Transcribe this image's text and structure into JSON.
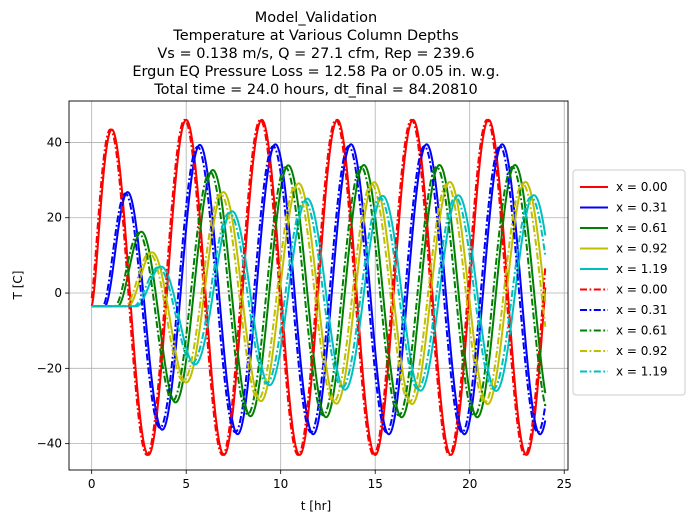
{
  "figure": {
    "title_lines": [
      "Model_Validation",
      "Temperature at Various Column Depths",
      "Vs = 0.138 m/s, Q = 27.1 cfm, Rep = 239.6",
      "Ergun EQ Pressure Loss = 12.58 Pa or 0.05 in. w.g.",
      "Total time = 24.0 hours, dt_final = 84.20810"
    ]
  },
  "chart_data": {
    "type": "line",
    "title": "Model_Validation\nTemperature at Various Column Depths\nVs = 0.138 m/s, Q = 27.1 cfm, Rep = 239.6\nErgun EQ Pressure Loss = 12.58 Pa or 0.05 in. w.g.\nTotal time = 24.0 hours, dt_final = 84.20810",
    "xlabel": "t [hr]",
    "ylabel": "T [C]",
    "xlim": [
      -1.2,
      25.2
    ],
    "ylim": [
      -47,
      51
    ],
    "xticks": [
      0,
      5,
      10,
      15,
      20,
      25
    ],
    "xtick_labels": [
      "0",
      "5",
      "10",
      "15",
      "20",
      "25"
    ],
    "yticks": [
      -40,
      -20,
      0,
      20,
      40
    ],
    "ytick_labels": [
      "−40",
      "−20",
      "0",
      "20",
      "40"
    ],
    "grid": true,
    "legend_placement": "center-right outside",
    "t_end": 24.0,
    "period_hr": 4.0,
    "series": [
      {
        "name": "x = 0.00",
        "color": "#ff0000",
        "dash": "solid",
        "initial": -3.5,
        "lag_hr": 0.0,
        "offset": 1.5,
        "amplitude": 44.5,
        "ramp_hr": 0.35
      },
      {
        "name": "x = 0.31",
        "color": "#0000ff",
        "dash": "solid",
        "initial": -3.5,
        "lag_hr": 0.72,
        "offset": 1.0,
        "amplitude": 38.5,
        "ramp_hr": 0.9
      },
      {
        "name": "x = 0.61",
        "color": "#008000",
        "dash": "solid",
        "initial": -3.5,
        "lag_hr": 1.4,
        "offset": 0.5,
        "amplitude": 33.5,
        "ramp_hr": 1.5
      },
      {
        "name": "x = 0.92",
        "color": "#bfbf00",
        "dash": "solid",
        "initial": -3.5,
        "lag_hr": 1.95,
        "offset": 0.0,
        "amplitude": 29.5,
        "ramp_hr": 2.0
      },
      {
        "name": "x = 1.19",
        "color": "#00bfbf",
        "dash": "solid",
        "initial": -3.5,
        "lag_hr": 2.4,
        "offset": 0.0,
        "amplitude": 26.0,
        "ramp_hr": 2.6
      },
      {
        "name": "x = 0.00",
        "color": "#ff0000",
        "dash": "dashdot",
        "initial": -3.5,
        "lag_hr": -0.08,
        "offset": 1.5,
        "amplitude": 44.5,
        "ramp_hr": 0.35
      },
      {
        "name": "x = 0.31",
        "color": "#0000ff",
        "dash": "dashdot",
        "initial": -3.5,
        "lag_hr": 0.6,
        "offset": 1.0,
        "amplitude": 38.0,
        "ramp_hr": 0.9
      },
      {
        "name": "x = 0.61",
        "color": "#008000",
        "dash": "dashdot",
        "initial": -3.5,
        "lag_hr": 1.25,
        "offset": 0.5,
        "amplitude": 33.0,
        "ramp_hr": 1.5
      },
      {
        "name": "x = 0.92",
        "color": "#bfbf00",
        "dash": "dashdot",
        "initial": -3.5,
        "lag_hr": 1.8,
        "offset": 0.0,
        "amplitude": 29.0,
        "ramp_hr": 2.0
      },
      {
        "name": "x = 1.19",
        "color": "#00bfbf",
        "dash": "dashdot",
        "initial": -3.5,
        "lag_hr": 2.25,
        "offset": 0.0,
        "amplitude": 25.5,
        "ramp_hr": 2.6
      }
    ]
  }
}
